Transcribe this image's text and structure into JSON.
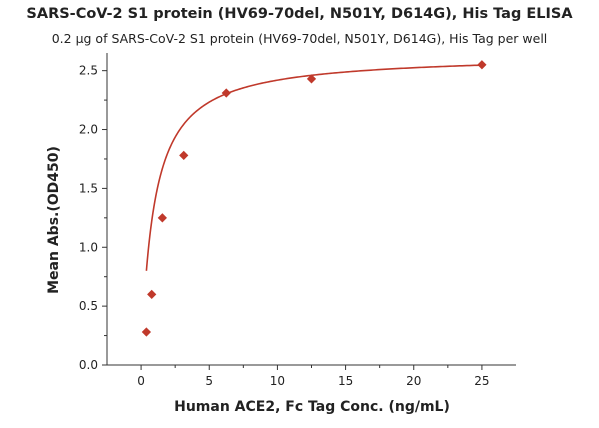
{
  "chart_data": {
    "type": "scatter",
    "title": "SARS-CoV-2 S1 protein (HV69-70del, N501Y, D614G), His Tag ELISA",
    "subtitle": "0.2 μg of SARS-CoV-2 S1 protein (HV69-70del, N501Y, D614G), His Tag per well",
    "xlabel": "Human ACE2, Fc Tag Conc. (ng/mL)",
    "ylabel": "Mean Abs.(OD450)",
    "xlim": [
      -2.5,
      27.5
    ],
    "ylim": [
      0,
      2.65
    ],
    "xticks": [
      0,
      5,
      10,
      15,
      20,
      25
    ],
    "xtick_labels": [
      "0",
      "5",
      "10",
      "15",
      "20",
      "25"
    ],
    "yticks": [
      0.0,
      0.5,
      1.0,
      1.5,
      2.0,
      2.5
    ],
    "ytick_labels": [
      "0.0",
      "0.5",
      "1.0",
      "1.5",
      "2.0",
      "2.5"
    ],
    "grid": false,
    "series": [
      {
        "x": [
          0.39,
          0.78,
          1.56,
          3.13,
          6.25,
          12.5,
          25
        ],
        "y": [
          0.28,
          0.6,
          1.25,
          1.78,
          2.31,
          2.43,
          2.55
        ],
        "marker": "diamond",
        "fit_line": true,
        "color": "#c0392b"
      }
    ]
  }
}
